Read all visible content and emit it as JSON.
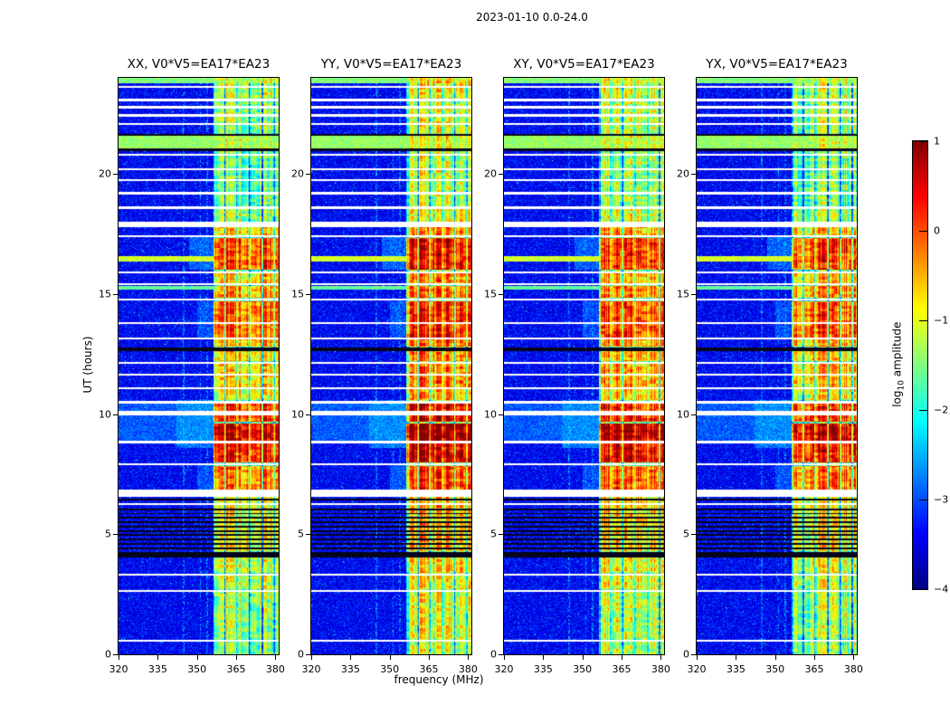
{
  "title": "2023-01-10 0.0-24.0",
  "xlabel": "frequency (MHz)",
  "ylabel": "UT (hours)",
  "colorbar": {
    "label_prefix": "log",
    "label_sub": "10",
    "label_suffix": " amplitude",
    "ticks": [
      "1",
      "0",
      "−1",
      "−2",
      "−3",
      "−4"
    ],
    "tick_values": [
      1,
      0,
      -1,
      -2,
      -3,
      -4
    ]
  },
  "chart_data": {
    "type": "heatmap",
    "title": "2023-01-10 0.0-24.0",
    "xlabel": "frequency (MHz)",
    "ylabel": "UT (hours)",
    "x_range": [
      320,
      381.25
    ],
    "y_range": [
      0,
      24
    ],
    "x_ticks": [
      320,
      335,
      350,
      365,
      380
    ],
    "y_ticks": [
      0,
      5,
      10,
      15,
      20
    ],
    "colormap": "jet",
    "clim": [
      -4,
      1
    ],
    "colorbar_label": "log10 amplitude",
    "panels": [
      {
        "label": "XX, V0*V5=EA17*EA23",
        "band_gain": 0
      },
      {
        "label": "YY, V0*V5=EA17*EA23",
        "band_gain": 0.3
      },
      {
        "label": "XY, V0*V5=EA17*EA23",
        "band_gain": 0.15
      },
      {
        "label": "YX, V0*V5=EA17*EA23",
        "band_gain": 0
      }
    ],
    "features": {
      "background": [
        -3.65,
        -2.85
      ],
      "faint_lines": [
        345.0,
        351.3,
        353.8
      ],
      "band": {
        "f0": 356.5,
        "base": -1.7,
        "channel_lines": [
          360.8,
          365.5,
          370.2,
          374.9,
          379.6
        ],
        "intervals": [
          [
            0.0,
            0.55,
            -1.45
          ],
          [
            0.65,
            2.6,
            -1.35
          ],
          [
            2.7,
            3.3,
            -1.15
          ],
          [
            3.4,
            4.05,
            -1.05
          ],
          [
            4.3,
            6.65,
            -0.9
          ],
          [
            6.8,
            7.85,
            -0.25
          ],
          [
            8.0,
            8.8,
            0.25
          ],
          [
            8.9,
            9.6,
            0.6
          ],
          [
            9.7,
            10.42,
            0.1
          ],
          [
            10.6,
            11.05,
            -0.9
          ],
          [
            11.1,
            12.1,
            -0.65
          ],
          [
            12.2,
            12.65,
            -0.7
          ],
          [
            12.8,
            13.12,
            -0.5
          ],
          [
            13.2,
            14.7,
            -0.1
          ],
          [
            14.85,
            15.35,
            -0.45
          ],
          [
            15.45,
            15.85,
            -0.65
          ],
          [
            16.0,
            17.35,
            0.0
          ],
          [
            17.45,
            17.85,
            -0.65
          ],
          [
            18.0,
            18.55,
            -1.25
          ],
          [
            18.7,
            21.0,
            -1.55
          ],
          [
            21.05,
            21.6,
            -1.35
          ],
          [
            21.7,
            23.0,
            -1.35
          ],
          [
            23.1,
            24.0,
            -1.2
          ]
        ]
      },
      "rows": [
        [
          21.05,
          21.6,
          -1.45
        ],
        [
          16.35,
          16.58,
          -1.15
        ],
        [
          15.18,
          15.35,
          -1.7
        ],
        [
          8.85,
          10.45,
          -3.0
        ],
        [
          23.78,
          24.0,
          -1.55
        ]
      ],
      "glows": [
        [
          8.6,
          10.6,
          342,
          356.5,
          -2.7
        ],
        [
          16.0,
          17.4,
          347,
          356.5,
          -2.85
        ],
        [
          6.8,
          7.9,
          350,
          356.5,
          -2.95
        ],
        [
          13.2,
          14.7,
          350,
          356.5,
          -2.95
        ]
      ],
      "white_gaps": [
        [
          23.62,
          0.09
        ],
        [
          23.07,
          0.09
        ],
        [
          22.77,
          0.09
        ],
        [
          22.43,
          0.09
        ],
        [
          22.08,
          0.09
        ],
        [
          20.8,
          0.09
        ],
        [
          20.2,
          0.09
        ],
        [
          19.74,
          0.09
        ],
        [
          19.2,
          0.09
        ],
        [
          18.6,
          0.12
        ],
        [
          17.9,
          0.22
        ],
        [
          17.4,
          0.09
        ],
        [
          15.9,
          0.09
        ],
        [
          15.4,
          0.09
        ],
        [
          14.77,
          0.09
        ],
        [
          13.8,
          0.09
        ],
        [
          13.15,
          0.09
        ],
        [
          12.13,
          0.09
        ],
        [
          11.64,
          0.09
        ],
        [
          11.08,
          0.09
        ],
        [
          10.5,
          0.1
        ],
        [
          10.05,
          0.2
        ],
        [
          8.85,
          0.12
        ],
        [
          7.91,
          0.1
        ],
        [
          6.7,
          0.28
        ],
        [
          6.25,
          0.09
        ],
        [
          3.32,
          0.1
        ],
        [
          2.64,
          0.1
        ],
        [
          0.57,
          0.09
        ]
      ],
      "black_lines": [
        [
          21.62,
          0.1
        ],
        [
          21.0,
          0.1
        ],
        [
          12.7,
          0.16
        ],
        [
          4.15,
          0.22
        ],
        [
          4.42,
          0.07
        ],
        [
          4.6,
          0.07
        ],
        [
          4.78,
          0.07
        ],
        [
          4.96,
          0.07
        ],
        [
          5.14,
          0.07
        ],
        [
          5.32,
          0.07
        ],
        [
          5.5,
          0.07
        ],
        [
          5.68,
          0.07
        ],
        [
          5.86,
          0.07
        ],
        [
          6.04,
          0.07
        ],
        [
          6.45,
          0.07
        ]
      ]
    }
  }
}
